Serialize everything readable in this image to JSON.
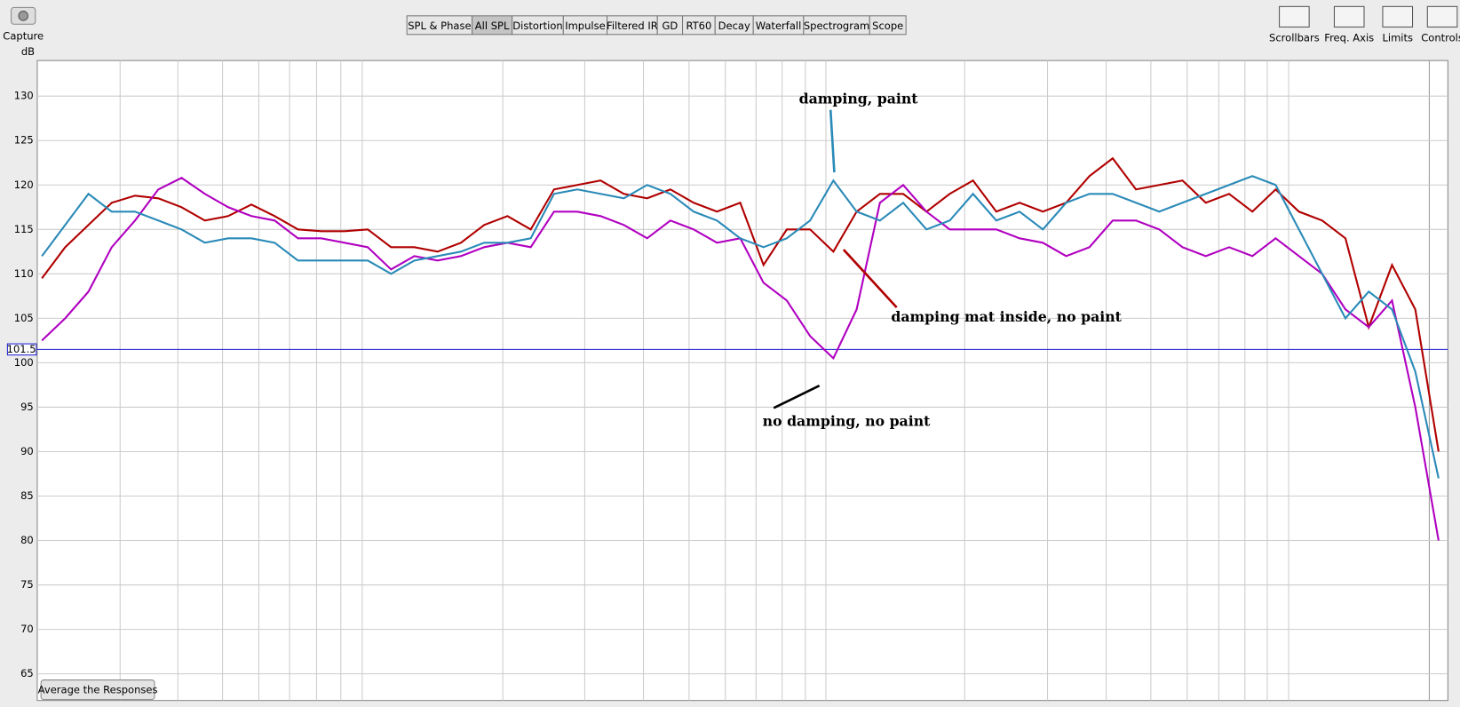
{
  "toolbar": {
    "capture": "Capture",
    "tabs": [
      "SPL & Phase",
      "All SPL",
      "Distortion",
      "Impulse",
      "Filtered IR",
      "GD",
      "RT60",
      "Decay",
      "Waterfall",
      "Spectrogram",
      "Scope"
    ],
    "tools": [
      "Scrollbars",
      "Freq. Axis",
      "Limits",
      "Controls"
    ]
  },
  "chart_data": {
    "type": "line",
    "y_label": "dB",
    "ylim": [
      62,
      134
    ],
    "yticks": [
      65,
      70,
      75,
      80,
      85,
      90,
      95,
      100,
      105,
      110,
      115,
      120,
      125,
      130
    ],
    "grid": true,
    "marker": 101.5,
    "series": [
      {
        "name": "damping mat inside, no paint",
        "color": "#b00000",
        "values": [
          109.5,
          113,
          115.5,
          118,
          118.8,
          118.5,
          117.5,
          116,
          116.5,
          117.8,
          116.5,
          115,
          114.8,
          114.8,
          115,
          113,
          113,
          112.5,
          113.5,
          115.5,
          116.5,
          115,
          119.5,
          120,
          120.5,
          119,
          118.5,
          119.5,
          118,
          117,
          118,
          111,
          115,
          115,
          112.5,
          117,
          119,
          119,
          117,
          119,
          120.5,
          117,
          118,
          117,
          118,
          121,
          123,
          119.5,
          120,
          120.5,
          118,
          119,
          117,
          119.5,
          117,
          116,
          114,
          104,
          111,
          106,
          90
        ]
      },
      {
        "name": "no damping, no paint",
        "color": "#b000c0",
        "values": [
          102.5,
          105,
          108,
          113,
          116,
          119.5,
          120.8,
          119,
          117.5,
          116.5,
          116,
          114,
          114,
          113.5,
          113,
          110.5,
          112,
          111.5,
          112,
          113,
          113.5,
          113,
          117,
          117,
          116.5,
          115.5,
          114,
          116,
          115,
          113.5,
          114,
          109,
          107,
          103,
          100.5,
          106,
          118,
          120,
          117,
          115,
          115,
          115,
          114,
          113.5,
          112,
          113,
          116,
          116,
          115,
          113,
          112,
          113,
          112,
          114,
          112,
          110,
          106,
          104,
          107,
          95,
          80
        ]
      },
      {
        "name": "damping, paint",
        "color": "#2a8ab8",
        "values": [
          112,
          115.5,
          119,
          117,
          117,
          116,
          115,
          113.5,
          114,
          114,
          113.5,
          111.5,
          111.5,
          111.5,
          111.5,
          110,
          111.5,
          112,
          112.5,
          113.5,
          113.5,
          114,
          119,
          119.5,
          119,
          118.5,
          120,
          119,
          117,
          116,
          114,
          113,
          114,
          116,
          120.5,
          117,
          116,
          118,
          115,
          116,
          119,
          116,
          117,
          115,
          118,
          119,
          119,
          118,
          117,
          118,
          119,
          120,
          121,
          120,
          115,
          110,
          105,
          108,
          106,
          99,
          87
        ]
      }
    ]
  },
  "button": "Average the Responses"
}
